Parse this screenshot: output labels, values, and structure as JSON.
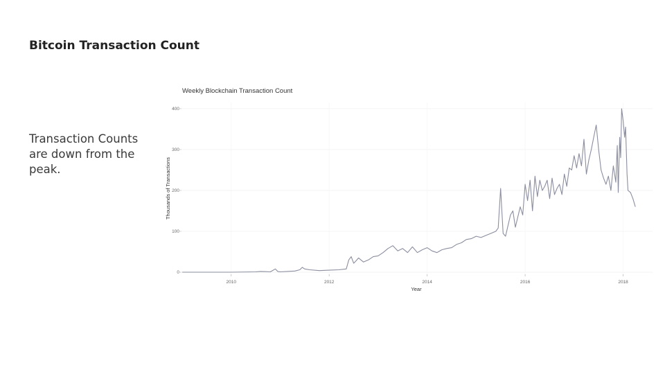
{
  "slide": {
    "title": "Bitcoin Transaction Count",
    "body": "Transaction Counts are down from the peak."
  },
  "chart_data": {
    "type": "line",
    "title": "Weekly Blockchain Transaction Count",
    "xlabel": "Year",
    "ylabel": "Thousands of Transactions",
    "xlim": [
      2009.0,
      2018.6
    ],
    "ylim": [
      -5,
      415
    ],
    "xticks": [
      2010,
      2012,
      2014,
      2016,
      2018
    ],
    "yticks": [
      0,
      100,
      200,
      300,
      400
    ],
    "grid": true,
    "legend": "none",
    "series": [
      {
        "color": "#8a8d9e",
        "x": [
          2009.0,
          2009.5,
          2010.0,
          2010.5,
          2010.6,
          2010.8,
          2010.9,
          2010.95,
          2011.0,
          2011.3,
          2011.4,
          2011.45,
          2011.5,
          2011.6,
          2011.8,
          2012.0,
          2012.2,
          2012.35,
          2012.4,
          2012.45,
          2012.5,
          2012.55,
          2012.6,
          2012.7,
          2012.8,
          2012.9,
          2013.0,
          2013.1,
          2013.2,
          2013.3,
          2013.4,
          2013.5,
          2013.6,
          2013.7,
          2013.8,
          2013.9,
          2014.0,
          2014.1,
          2014.2,
          2014.3,
          2014.4,
          2014.5,
          2014.6,
          2014.7,
          2014.8,
          2014.9,
          2015.0,
          2015.1,
          2015.2,
          2015.3,
          2015.4,
          2015.45,
          2015.5,
          2015.55,
          2015.6,
          2015.7,
          2015.75,
          2015.8,
          2015.9,
          2015.95,
          2016.0,
          2016.05,
          2016.1,
          2016.15,
          2016.2,
          2016.25,
          2016.3,
          2016.35,
          2016.4,
          2016.45,
          2016.5,
          2016.55,
          2016.6,
          2016.65,
          2016.7,
          2016.75,
          2016.8,
          2016.85,
          2016.9,
          2016.95,
          2017.0,
          2017.05,
          2017.1,
          2017.15,
          2017.2,
          2017.25,
          2017.3,
          2017.35,
          2017.4,
          2017.45,
          2017.5,
          2017.55,
          2017.6,
          2017.65,
          2017.7,
          2017.75,
          2017.8,
          2017.85,
          2017.88,
          2017.9,
          2017.93,
          2017.95,
          2017.97,
          2018.0,
          2018.03,
          2018.05,
          2018.08,
          2018.1,
          2018.15,
          2018.2,
          2018.25
        ],
        "y": [
          0,
          0,
          0,
          1,
          2,
          1,
          8,
          2,
          1,
          3,
          6,
          12,
          8,
          6,
          4,
          5,
          6,
          8,
          30,
          38,
          22,
          28,
          35,
          25,
          30,
          38,
          40,
          48,
          58,
          65,
          52,
          58,
          48,
          62,
          48,
          55,
          60,
          52,
          48,
          55,
          58,
          60,
          68,
          72,
          80,
          82,
          88,
          85,
          90,
          95,
          100,
          108,
          205,
          95,
          88,
          140,
          150,
          110,
          160,
          140,
          215,
          175,
          225,
          150,
          235,
          185,
          225,
          200,
          210,
          225,
          180,
          230,
          190,
          205,
          215,
          190,
          240,
          210,
          255,
          250,
          285,
          255,
          290,
          260,
          325,
          240,
          275,
          300,
          330,
          360,
          300,
          250,
          230,
          215,
          235,
          200,
          260,
          220,
          310,
          195,
          330,
          280,
          400,
          370,
          330,
          355,
          240,
          200,
          195,
          180,
          160
        ]
      }
    ]
  }
}
